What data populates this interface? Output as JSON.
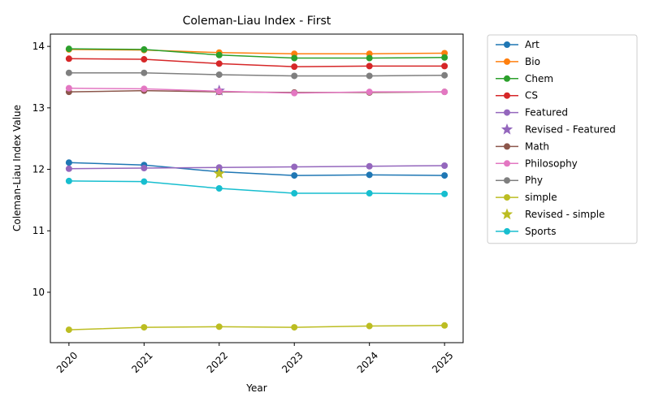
{
  "chart_data": {
    "type": "line",
    "title": "Coleman-Liau Index - First",
    "xlabel": "Year",
    "ylabel": "Coleman-Liau Index Value",
    "x": [
      "2020",
      "2021",
      "2022",
      "2023",
      "2024",
      "2025"
    ],
    "yticks": [
      10,
      11,
      12,
      13,
      14
    ],
    "ylim": [
      9.18,
      14.2
    ],
    "grid": false,
    "legend_position": "outside-top-right",
    "series": [
      {
        "name": "Art",
        "color": "#1f77b4",
        "marker": "circle",
        "values": [
          12.11,
          12.07,
          11.96,
          11.9,
          11.91,
          11.9
        ]
      },
      {
        "name": "Bio",
        "color": "#ff7f0e",
        "marker": "circle",
        "values": [
          13.95,
          13.94,
          13.9,
          13.88,
          13.88,
          13.89
        ]
      },
      {
        "name": "Chem",
        "color": "#2ca02c",
        "marker": "circle",
        "values": [
          13.96,
          13.95,
          13.86,
          13.81,
          13.81,
          13.82
        ]
      },
      {
        "name": "CS",
        "color": "#d62728",
        "marker": "circle",
        "values": [
          13.8,
          13.79,
          13.72,
          13.67,
          13.68,
          13.68
        ]
      },
      {
        "name": "Featured",
        "color": "#9467bd",
        "marker": "circle",
        "values": [
          12.01,
          12.02,
          12.03,
          12.04,
          12.05,
          12.06
        ]
      },
      {
        "name": "Revised - Featured",
        "color": "#9467bd",
        "marker": "star",
        "points": [
          {
            "x": "2022",
            "y": 13.28
          }
        ]
      },
      {
        "name": "Math",
        "color": "#8c564b",
        "marker": "circle",
        "values": [
          13.26,
          13.28,
          13.26,
          13.25,
          13.25,
          13.26
        ]
      },
      {
        "name": "Philosophy",
        "color": "#e377c2",
        "marker": "circle",
        "values": [
          13.32,
          13.31,
          13.27,
          13.24,
          13.26,
          13.26
        ]
      },
      {
        "name": "Phy",
        "color": "#7f7f7f",
        "marker": "circle",
        "values": [
          13.57,
          13.57,
          13.54,
          13.52,
          13.52,
          13.53
        ]
      },
      {
        "name": "simple",
        "color": "#bcbd22",
        "marker": "circle",
        "values": [
          9.39,
          9.43,
          9.44,
          9.43,
          9.45,
          9.46
        ]
      },
      {
        "name": "Revised - simple",
        "color": "#bcbd22",
        "marker": "star",
        "points": [
          {
            "x": "2022",
            "y": 11.93
          }
        ]
      },
      {
        "name": "Sports",
        "color": "#17becf",
        "marker": "circle",
        "values": [
          11.81,
          11.8,
          11.69,
          11.61,
          11.61,
          11.6
        ]
      }
    ]
  }
}
